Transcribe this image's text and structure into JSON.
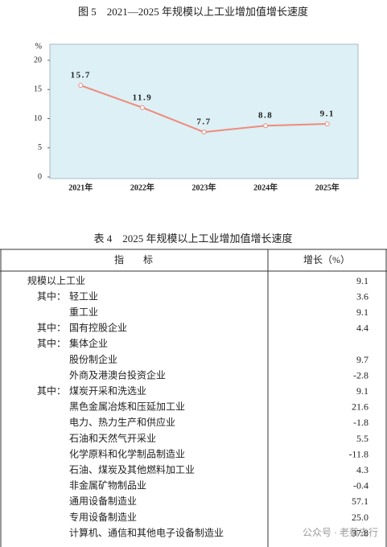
{
  "chart_data": {
    "type": "line",
    "title": "图 5　2021—2025 年规模以上工业增加值增长速度",
    "ylabel": "%",
    "categories": [
      "2021年",
      "2022年",
      "2023年",
      "2024年",
      "2025年"
    ],
    "values": [
      15.7,
      11.9,
      7.7,
      8.8,
      9.1
    ],
    "color": "#ef8a7c",
    "ylim": [
      0,
      20
    ],
    "yticks": [
      0,
      5,
      10,
      15,
      20
    ],
    "grid": false
  },
  "table": {
    "title": "表 4　2025 年规模以上工业增加值增长速度",
    "header": [
      "指　　标",
      "增长（%）"
    ],
    "rows": [
      {
        "label": "规模以上工业",
        "value": "9.1"
      },
      {
        "prefix": "其中：",
        "name": "轻工业",
        "value": "3.6"
      },
      {
        "name": "重工业",
        "value": "9.1"
      },
      {
        "prefix": "其中：",
        "name": "国有控股企业",
        "value": "4.4"
      },
      {
        "prefix": "其中：",
        "name": "集体企业"
      },
      {
        "name": "股份制企业",
        "value": "9.7"
      },
      {
        "name": "外商及港澳台投资企业",
        "value": "-2.8"
      },
      {
        "prefix": "其中：",
        "name": "煤炭开采和洗选业",
        "value": "9.1"
      },
      {
        "name": "黑色金属冶炼和压延加工业",
        "value": "21.6"
      },
      {
        "name": "电力、热力生产和供应业",
        "value": "-1.8"
      },
      {
        "name": "石油和天然气开采业",
        "value": "5.5"
      },
      {
        "name": "化学原料和化学制品制造业",
        "value": "-11.8"
      },
      {
        "name": "石油、煤炭及其他燃料加工业",
        "value": "4.3"
      },
      {
        "name": "非金属矿物制品业",
        "value": "-0.4"
      },
      {
        "name": "通用设备制造业",
        "value": "57.1"
      },
      {
        "name": "专用设备制造业",
        "value": "25.0"
      },
      {
        "name": "计算机、通信和其他电子设备制造业",
        "value": "37.8"
      }
    ]
  },
  "watermark": "公众号 · 老蔡去行"
}
